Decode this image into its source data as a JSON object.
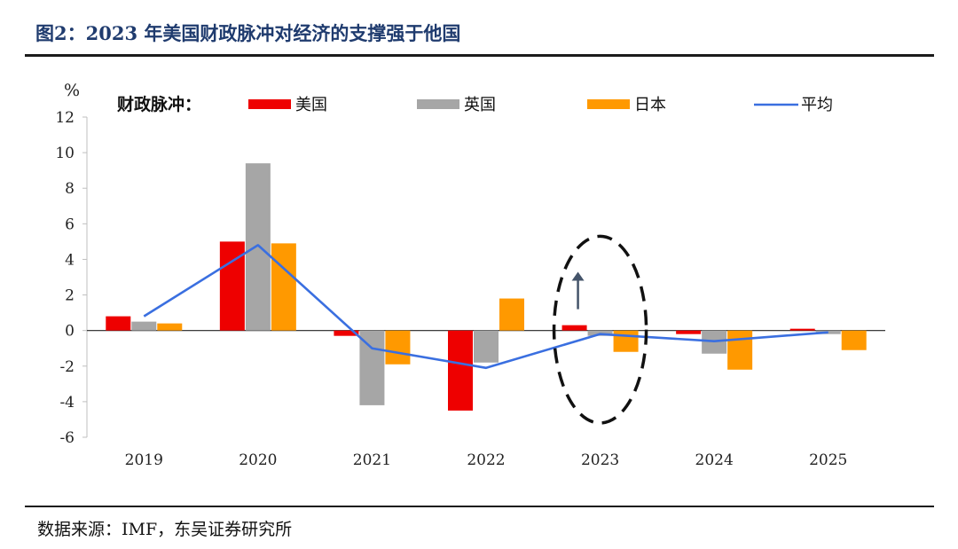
{
  "figure": {
    "title": "图2：2023 年美国财政脉冲对经济的支撑强于他国",
    "source": "数据来源：IMF，东吴证券研究所"
  },
  "colors": {
    "us": "#ee0000",
    "uk": "#a6a6a6",
    "japan": "#ff9900",
    "avg": "#3a6fe0",
    "title": "#1f3b6e"
  },
  "chart_data": {
    "type": "bar",
    "title": "",
    "ylabel": "%",
    "xlabel": "",
    "legend_title": "财政脉冲：",
    "legend_position": "top",
    "categories": [
      "2019",
      "2020",
      "2021",
      "2022",
      "2023",
      "2024",
      "2025"
    ],
    "series": [
      {
        "name": "美国",
        "kind": "bar",
        "color_key": "us",
        "values": [
          0.8,
          5.0,
          -0.3,
          -4.5,
          0.3,
          -0.2,
          0.1
        ]
      },
      {
        "name": "英国",
        "kind": "bar",
        "color_key": "uk",
        "values": [
          0.5,
          9.4,
          -4.2,
          -1.8,
          -0.3,
          -1.3,
          -0.2
        ]
      },
      {
        "name": "日本",
        "kind": "bar",
        "color_key": "japan",
        "values": [
          0.4,
          4.9,
          -1.9,
          1.8,
          -1.2,
          -2.2,
          -1.1
        ]
      },
      {
        "name": "平均",
        "kind": "line",
        "color_key": "avg",
        "values": [
          0.8,
          4.8,
          -1.0,
          -2.1,
          -0.2,
          -0.6,
          -0.1
        ]
      }
    ],
    "ylim": [
      -6,
      12
    ],
    "yticks": [
      -6,
      -4,
      -2,
      0,
      2,
      4,
      6,
      8,
      10,
      12
    ],
    "grid": false,
    "annotations": [
      {
        "type": "ellipse-dashed",
        "category": "2023",
        "y_range": [
          -5.2,
          5.3
        ]
      },
      {
        "type": "arrow-up",
        "category": "2023",
        "from": 1.2,
        "to": 3.3
      }
    ]
  }
}
